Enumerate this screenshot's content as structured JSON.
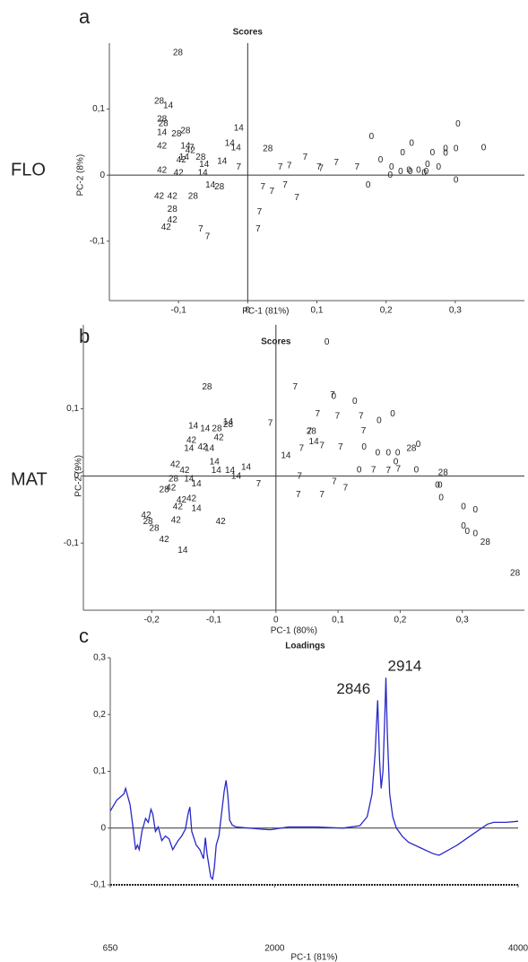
{
  "chart_data": [
    {
      "type": "scatter",
      "panel_label": "a",
      "side_label": "FLO",
      "title": "Scores",
      "xlabel": "PC-1 (81%)",
      "ylabel": "PC-2 (8%)",
      "xlim": [
        -0.2,
        0.4
      ],
      "ylim": [
        -0.19,
        0.2
      ],
      "xticks": [
        {
          "value": -0.1,
          "label": "-0,1"
        },
        0,
        {
          "value": 0.1,
          "label": "0,1"
        },
        {
          "value": 0.2,
          "label": "0,2"
        },
        {
          "value": 0.3,
          "label": "0,3"
        }
      ],
      "yticks": [
        {
          "value": -0.1,
          "label": "-0,1"
        },
        0,
        {
          "value": 0.1,
          "label": "0,1"
        }
      ],
      "series": [
        {
          "name": "28",
          "color": "#9bbbe0",
          "x": [
            -0.101,
            -0.128,
            -0.124,
            -0.09,
            -0.103,
            -0.068,
            0.029,
            -0.041,
            -0.079,
            -0.109,
            -0.122
          ],
          "values": [
            0.185,
            0.112,
            0.085,
            0.067,
            0.062,
            0.027,
            0.04,
            -0.018,
            -0.032,
            -0.052,
            0.078
          ]
        },
        {
          "name": "14",
          "color": "#2e8b2e",
          "x": [
            -0.115,
            -0.124,
            -0.09,
            -0.013,
            -0.026,
            -0.017,
            -0.063,
            -0.037,
            -0.065,
            -0.054,
            -0.092
          ],
          "values": [
            0.105,
            0.064,
            0.044,
            0.071,
            0.048,
            0.041,
            0.016,
            0.021,
            0.003,
            -0.015,
            0.027
          ]
        },
        {
          "name": "42",
          "color": "#8b1a1a",
          "x": [
            -0.124,
            -0.096,
            -0.124,
            -0.1,
            -0.128,
            -0.109,
            -0.109,
            -0.118,
            -0.083
          ],
          "values": [
            0.044,
            0.023,
            0.007,
            0.003,
            -0.032,
            -0.032,
            -0.068,
            -0.079,
            0.037
          ]
        },
        {
          "name": "7",
          "color": "#e02020",
          "x": [
            -0.081,
            -0.013,
            0.047,
            0.06,
            0.083,
            0.103,
            0.128,
            0.158,
            0.022,
            0.035,
            0.054,
            0.071,
            0.017,
            0.015,
            -0.068,
            -0.058,
            0.106
          ],
          "values": [
            0.041,
            0.012,
            0.012,
            0.014,
            0.027,
            0.012,
            0.019,
            0.012,
            -0.018,
            -0.025,
            -0.015,
            -0.034,
            -0.056,
            -0.082,
            -0.082,
            -0.093,
            0.01
          ]
        },
        {
          "name": "0",
          "color": "#2020d0",
          "x": [
            0.304,
            0.341,
            0.179,
            0.237,
            0.224,
            0.267,
            0.286,
            0.301,
            0.286,
            0.192,
            0.208,
            0.233,
            0.247,
            0.26,
            0.276,
            0.174,
            0.206,
            0.221,
            0.235,
            0.255,
            0.301,
            0.258
          ],
          "values": [
            0.077,
            0.041,
            0.058,
            0.048,
            0.034,
            0.034,
            0.04,
            0.04,
            0.033,
            0.023,
            0.012,
            0.007,
            0.007,
            0.016,
            0.012,
            -0.015,
            0,
            0.005,
            0.005,
            0.003,
            -0.008,
            0.005
          ]
        }
      ]
    },
    {
      "type": "scatter",
      "panel_label": "b",
      "side_label": "MAT",
      "title": "Scores",
      "xlabel": "PC-1 (80%)",
      "ylabel": "PC-2 (9%)",
      "xlim": [
        -0.31,
        0.4
      ],
      "ylim": [
        -0.2,
        0.225
      ],
      "xticks": [
        {
          "value": -0.2,
          "label": "-0,2"
        },
        {
          "value": -0.1,
          "label": "-0,1"
        },
        0,
        {
          "value": 0.1,
          "label": "0,1"
        },
        {
          "value": 0.2,
          "label": "0,2"
        },
        {
          "value": 0.3,
          "label": "0,3"
        }
      ],
      "yticks": [
        {
          "value": -0.1,
          "label": "-0,1"
        },
        0,
        {
          "value": 0.1,
          "label": "0,1"
        }
      ],
      "series": [
        {
          "name": "28",
          "color": "#9bbbe0",
          "x": [
            -0.111,
            -0.095,
            -0.165,
            -0.18,
            -0.206,
            -0.196,
            0.057,
            0.218,
            0.269,
            0.337,
            0.385,
            -0.077
          ],
          "values": [
            0.132,
            0.07,
            -0.005,
            -0.021,
            -0.068,
            -0.078,
            0.066,
            0.041,
            0.005,
            -0.099,
            -0.145,
            0.076
          ]
        },
        {
          "name": "14",
          "color": "#2e8b2e",
          "x": [
            -0.133,
            -0.114,
            -0.077,
            -0.14,
            -0.107,
            -0.096,
            -0.074,
            -0.048,
            -0.064,
            -0.099,
            -0.128,
            -0.128,
            -0.15,
            0.016,
            0.061,
            -0.14
          ],
          "values": [
            0.074,
            0.07,
            0.08,
            0.041,
            0.041,
            0.008,
            0.008,
            0.013,
            -0.001,
            0.021,
            -0.012,
            -0.049,
            -0.111,
            0.03,
            0.051,
            -0.005
          ]
        },
        {
          "name": "42",
          "color": "#8b1a1a",
          "x": [
            -0.092,
            -0.136,
            -0.162,
            -0.169,
            -0.136,
            -0.152,
            -0.158,
            -0.209,
            -0.161,
            -0.18,
            -0.089,
            -0.118,
            -0.147
          ],
          "values": [
            0.057,
            0.053,
            0.017,
            -0.018,
            -0.034,
            -0.036,
            -0.046,
            -0.059,
            -0.066,
            -0.095,
            -0.068,
            0.043,
            0.008
          ]
        },
        {
          "name": "7",
          "color": "#e02020",
          "x": [
            0.031,
            0.091,
            -0.009,
            0.067,
            0.099,
            0.137,
            0.141,
            0.054,
            0.104,
            0.041,
            0.074,
            0.157,
            0.181,
            0.197,
            0.038,
            0.094,
            0.112,
            0.036,
            0.074,
            -0.028
          ],
          "values": [
            0.132,
            0.12,
            0.078,
            0.092,
            0.089,
            0.089,
            0.067,
            0.066,
            0.043,
            0.041,
            0.045,
            0.009,
            0.008,
            0.01,
            -0.001,
            -0.009,
            -0.018,
            -0.028,
            -0.028,
            -0.012
          ]
        },
        {
          "name": "0",
          "color": "#2020d0",
          "x": [
            0.082,
            0.093,
            0.127,
            0.188,
            0.166,
            0.142,
            0.181,
            0.164,
            0.196,
            0.229,
            0.193,
            0.226,
            0.134,
            0.264,
            0.26,
            0.266,
            0.302,
            0.321,
            0.302,
            0.308,
            0.321
          ],
          "values": [
            0.199,
            0.118,
            0.111,
            0.092,
            0.082,
            0.043,
            0.034,
            0.034,
            0.034,
            0.047,
            0.021,
            0.009,
            0.009,
            -0.014,
            -0.014,
            -0.033,
            -0.046,
            -0.051,
            -0.075,
            -0.083,
            -0.086
          ]
        }
      ]
    },
    {
      "type": "line",
      "panel_label": "c",
      "title": "Loadings",
      "xlabel": "PC-1 (81%)",
      "xlim": [
        650,
        4000
      ],
      "ylim": [
        -0.1,
        0.3
      ],
      "xticks": [
        650,
        2000,
        4000
      ],
      "yticks": [
        {
          "value": -0.1,
          "label": "-0,1"
        },
        0,
        {
          "value": 0.1,
          "label": "0,1"
        },
        {
          "value": 0.2,
          "label": "0,2"
        },
        {
          "value": 0.3,
          "label": "0,3"
        }
      ],
      "annotations": [
        "2846",
        "2914"
      ],
      "x": [
        650,
        702,
        761,
        776,
        813,
        836,
        858,
        873,
        888,
        910,
        940,
        962,
        984,
        999,
        1021,
        1044,
        1073,
        1103,
        1133,
        1163,
        1185,
        1207,
        1237,
        1267,
        1289,
        1304,
        1319,
        1356,
        1386,
        1416,
        1431,
        1445,
        1475,
        1490,
        1505,
        1520,
        1542,
        1564,
        1586,
        1601,
        1616,
        1631,
        1653,
        1683,
        1891,
        1965,
        2114,
        2337,
        2560,
        2700,
        2760,
        2800,
        2825,
        2846,
        2862,
        2875,
        2890,
        2905,
        2914,
        2925,
        2945,
        2970,
        3000,
        3050,
        3100,
        3200,
        3300,
        3350,
        3400,
        3500,
        3600,
        3700,
        3750,
        3800,
        3900,
        4000
      ],
      "series": [
        {
          "color": "#2828c8",
          "values": [
            0.03,
            0.049,
            0.06,
            0.07,
            0.041,
            0.002,
            -0.038,
            -0.03,
            -0.038,
            -0.006,
            0.017,
            0.01,
            0.033,
            0.025,
            -0.006,
            0.002,
            -0.022,
            -0.014,
            -0.019,
            -0.038,
            -0.03,
            -0.022,
            -0.014,
            -0.002,
            0.025,
            0.037,
            -0.006,
            -0.03,
            -0.038,
            -0.054,
            -0.017,
            -0.046,
            -0.086,
            -0.09,
            -0.07,
            -0.03,
            -0.014,
            0.025,
            0.065,
            0.084,
            0.057,
            0.014,
            0.005,
            0.002,
            -0.002,
            -0.003,
            0.002,
            0.002,
            0,
            0.004,
            0.02,
            0.06,
            0.13,
            0.225,
            0.12,
            0.07,
            0.1,
            0.2,
            0.265,
            0.17,
            0.06,
            0.02,
            0,
            -0.015,
            -0.025,
            -0.035,
            -0.045,
            -0.048,
            -0.042,
            -0.03,
            -0.015,
            0,
            0.007,
            0.01,
            0.01,
            0.012
          ]
        }
      ]
    }
  ]
}
